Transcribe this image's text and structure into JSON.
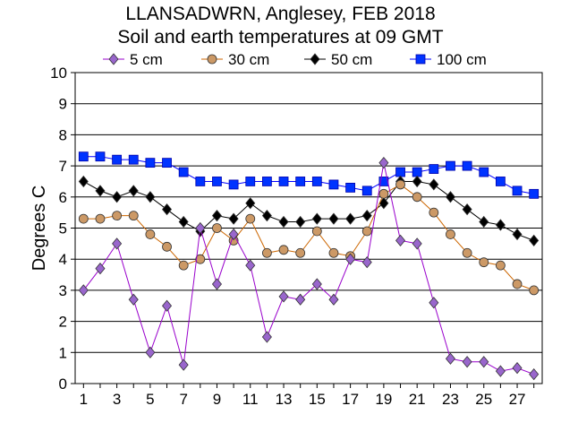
{
  "chart_data": {
    "type": "line",
    "title": "LLANSADWRN, Anglesey, FEB 2018",
    "subtitle": "Soil and earth temperatures at 09 GMT",
    "xlabel": "",
    "ylabel": "Degrees C",
    "xlim": [
      1,
      28
    ],
    "ylim": [
      0,
      10
    ],
    "x_ticks": [
      "1",
      "3",
      "5",
      "7",
      "9",
      "11",
      "13",
      "15",
      "17",
      "19",
      "21",
      "23",
      "25",
      "27"
    ],
    "y_ticks": [
      "0",
      "1",
      "2",
      "3",
      "4",
      "5",
      "6",
      "7",
      "8",
      "9",
      "10"
    ],
    "grid": "horizontal",
    "legend_position": "top",
    "x": [
      1,
      2,
      3,
      4,
      5,
      6,
      7,
      8,
      9,
      10,
      11,
      12,
      13,
      14,
      15,
      16,
      17,
      18,
      19,
      20,
      21,
      22,
      23,
      24,
      25,
      26,
      27,
      28
    ],
    "series": [
      {
        "name": "5 cm",
        "color": "#9900cc",
        "marker_fill": "#9966cc",
        "marker": "diamond",
        "values": [
          3.0,
          3.7,
          4.5,
          2.7,
          1.0,
          2.5,
          0.6,
          5.0,
          3.2,
          4.8,
          3.8,
          1.5,
          2.8,
          2.7,
          3.2,
          2.7,
          4.0,
          3.9,
          7.1,
          4.6,
          4.5,
          2.6,
          0.8,
          0.7,
          0.7,
          0.4,
          0.5,
          0.3
        ]
      },
      {
        "name": "30 cm",
        "color": "#cc6600",
        "marker_fill": "#cc9966",
        "marker": "circle",
        "values": [
          5.3,
          5.3,
          5.4,
          5.4,
          4.8,
          4.4,
          3.8,
          4.0,
          5.0,
          4.6,
          5.3,
          4.2,
          4.3,
          4.2,
          4.9,
          4.2,
          4.1,
          4.9,
          6.1,
          6.4,
          6.0,
          5.5,
          4.8,
          4.2,
          3.9,
          3.8,
          3.2,
          3.0
        ]
      },
      {
        "name": "50 cm",
        "color": "#000000",
        "marker_fill": "#000000",
        "marker": "diamond",
        "values": [
          6.5,
          6.2,
          6.0,
          6.2,
          6.0,
          5.6,
          5.2,
          4.9,
          5.4,
          5.3,
          5.8,
          5.4,
          5.2,
          5.2,
          5.3,
          5.3,
          5.3,
          5.4,
          5.8,
          6.5,
          6.5,
          6.4,
          6.0,
          5.6,
          5.2,
          5.1,
          4.8,
          4.6
        ]
      },
      {
        "name": "100 cm",
        "color": "#0000ff",
        "marker_fill": "#0033ff",
        "marker": "square",
        "values": [
          7.3,
          7.3,
          7.2,
          7.2,
          7.1,
          7.1,
          6.8,
          6.5,
          6.5,
          6.4,
          6.5,
          6.5,
          6.5,
          6.5,
          6.5,
          6.4,
          6.3,
          6.2,
          6.5,
          6.8,
          6.8,
          6.9,
          7.0,
          7.0,
          6.8,
          6.5,
          6.2,
          6.1
        ]
      }
    ]
  }
}
